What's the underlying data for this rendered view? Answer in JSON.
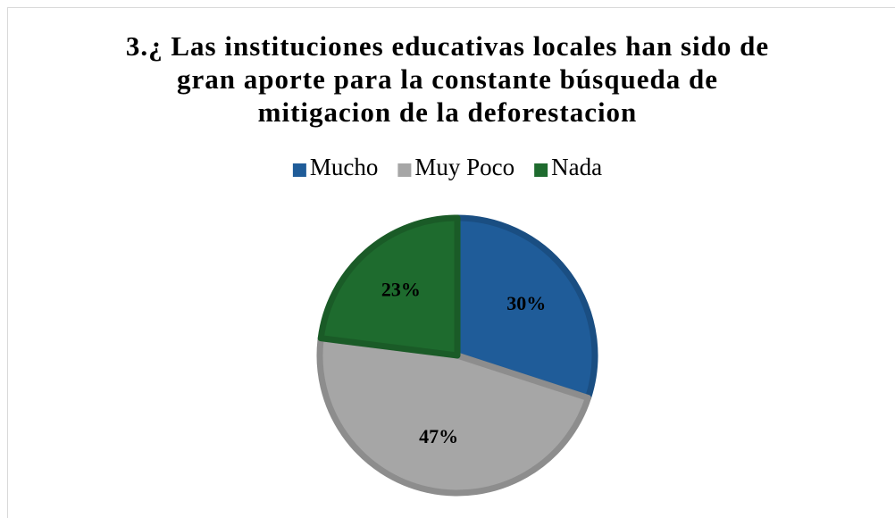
{
  "chart_data": {
    "type": "pie",
    "title": "3.¿ Las instituciones educativas locales han sido de gran aporte para la constante búsqueda de mitigacion de la deforestacion",
    "categories": [
      "Mucho",
      "Muy Poco",
      "Nada"
    ],
    "values": [
      30,
      47,
      23
    ],
    "value_labels": [
      "30%",
      "47%",
      "23%"
    ],
    "colors": [
      "#1f5c99",
      "#a6a6a6",
      "#1e6b2e"
    ],
    "legend": "top"
  }
}
